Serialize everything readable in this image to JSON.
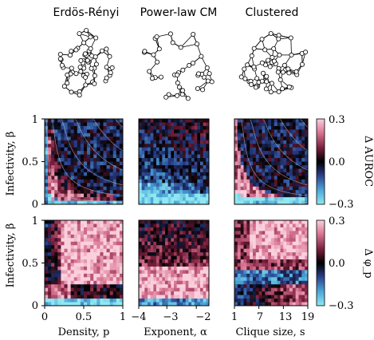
{
  "column_titles": [
    "Erdös-Rényi",
    "Power-law CM",
    "Clustered"
  ],
  "row_labels": [
    "Infectivity, β",
    "Infectivity, β"
  ],
  "colorbars": [
    {
      "label": "Δ AUROC",
      "ticks": [
        "0.3",
        "0.0",
        "−0.3"
      ]
    },
    {
      "label": "Δ φ_p",
      "ticks": [
        "0.3",
        "0.0",
        "−0.3"
      ]
    }
  ],
  "y_ticks": [
    "1",
    "0.5",
    "0"
  ],
  "x_axes": [
    {
      "label": "Density, p",
      "ticks": [
        "0",
        "0.5",
        "1"
      ]
    },
    {
      "label": "Exponent, α",
      "ticks": [
        "−4",
        "−3",
        "−2"
      ]
    },
    {
      "label": "Clique size, s",
      "ticks": [
        "1",
        "7",
        "13",
        "19"
      ]
    }
  ],
  "chart_data": [
    {
      "type": "heatmap",
      "title": "Erdös-Rényi",
      "xlabel": "",
      "ylabel": "Infectivity, β",
      "xlim": [
        0,
        1
      ],
      "ylim": [
        0,
        1
      ],
      "clim": [
        -0.3,
        0.3
      ],
      "colorbar_label": "Δ AUROC",
      "pattern": "er_auroc"
    },
    {
      "type": "heatmap",
      "title": "Power-law CM",
      "xlabel": "",
      "ylabel": "",
      "xlim": [
        -4,
        -1.5
      ],
      "ylim": [
        0,
        1
      ],
      "clim": [
        -0.3,
        0.3
      ],
      "colorbar_label": "Δ AUROC",
      "pattern": "pl_auroc"
    },
    {
      "type": "heatmap",
      "title": "Clustered",
      "xlabel": "",
      "ylabel": "",
      "xlim": [
        1,
        19
      ],
      "ylim": [
        0,
        1
      ],
      "clim": [
        -0.3,
        0.3
      ],
      "colorbar_label": "Δ AUROC",
      "pattern": "cl_auroc"
    },
    {
      "type": "heatmap",
      "title": "",
      "xlabel": "Density, p",
      "ylabel": "Infectivity, β",
      "xlim": [
        0,
        1
      ],
      "ylim": [
        0,
        1
      ],
      "clim": [
        -0.3,
        0.3
      ],
      "colorbar_label": "Δ φ_p",
      "pattern": "er_phi"
    },
    {
      "type": "heatmap",
      "title": "",
      "xlabel": "Exponent, α",
      "ylabel": "",
      "xlim": [
        -4,
        -1.5
      ],
      "ylim": [
        0,
        1
      ],
      "clim": [
        -0.3,
        0.3
      ],
      "colorbar_label": "Δ φ_p",
      "pattern": "pl_phi"
    },
    {
      "type": "heatmap",
      "title": "",
      "xlabel": "Clique size, s",
      "ylabel": "",
      "xlim": [
        1,
        19
      ],
      "ylim": [
        0,
        1
      ],
      "clim": [
        -0.3,
        0.3
      ],
      "colorbar_label": "Δ φ_p",
      "pattern": "cl_phi"
    }
  ]
}
